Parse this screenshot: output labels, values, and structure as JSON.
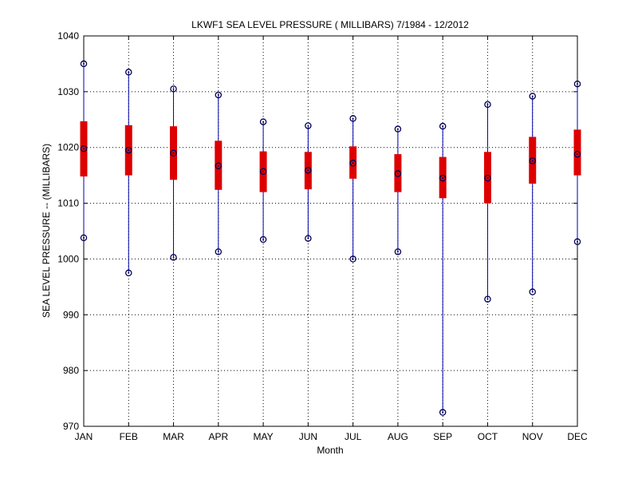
{
  "chart_data": {
    "type": "box",
    "title": "LKWF1  SEA LEVEL PRESSURE ( MILLIBARS) 7/1984 - 12/2012",
    "xlabel": "Month",
    "ylabel": "SEA LEVEL PRESSURE -- (MILLIBARS)",
    "ylim": [
      970,
      1040
    ],
    "yticks": [
      970,
      980,
      990,
      1000,
      1010,
      1020,
      1030,
      1040
    ],
    "grid": true,
    "colors": {
      "whisker": "#0000aa",
      "box": "#dd0000",
      "marker": "#000055"
    },
    "categories": [
      "JAN",
      "FEB",
      "MAR",
      "APR",
      "MAY",
      "JUN",
      "JUL",
      "AUG",
      "SEP",
      "OCT",
      "NOV",
      "DEC"
    ],
    "series": [
      {
        "min": 1003.8,
        "q1": 1014.8,
        "median": 1019.8,
        "q3": 1024.7,
        "max": 1035.0
      },
      {
        "min": 997.5,
        "q1": 1015.0,
        "median": 1019.5,
        "q3": 1024.0,
        "max": 1033.5
      },
      {
        "min": 1000.3,
        "q1": 1014.2,
        "median": 1019.0,
        "q3": 1023.8,
        "max": 1030.5
      },
      {
        "min": 1001.3,
        "q1": 1012.4,
        "median": 1016.7,
        "q3": 1021.2,
        "max": 1029.4
      },
      {
        "min": 1003.5,
        "q1": 1012.0,
        "median": 1015.7,
        "q3": 1019.3,
        "max": 1024.6
      },
      {
        "min": 1003.7,
        "q1": 1012.5,
        "median": 1015.9,
        "q3": 1019.2,
        "max": 1023.9
      },
      {
        "min": 1000.0,
        "q1": 1014.4,
        "median": 1017.2,
        "q3": 1020.2,
        "max": 1025.2
      },
      {
        "min": 1001.3,
        "q1": 1012.0,
        "median": 1015.3,
        "q3": 1018.8,
        "max": 1023.3
      },
      {
        "min": 972.5,
        "q1": 1010.9,
        "median": 1014.5,
        "q3": 1018.3,
        "max": 1023.8
      },
      {
        "min": 992.8,
        "q1": 1010.0,
        "median": 1014.5,
        "q3": 1019.2,
        "max": 1027.7
      },
      {
        "min": 994.1,
        "q1": 1013.5,
        "median": 1017.6,
        "q3": 1021.9,
        "max": 1029.2
      },
      {
        "min": 1003.1,
        "q1": 1015.0,
        "median": 1018.8,
        "q3": 1023.2,
        "max": 1031.4
      }
    ]
  }
}
